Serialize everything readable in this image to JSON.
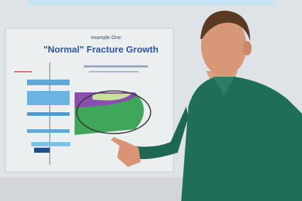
{
  "poster": {
    "subtitle": "example One:",
    "title": "\"Normal\" Fracture Growth"
  }
}
